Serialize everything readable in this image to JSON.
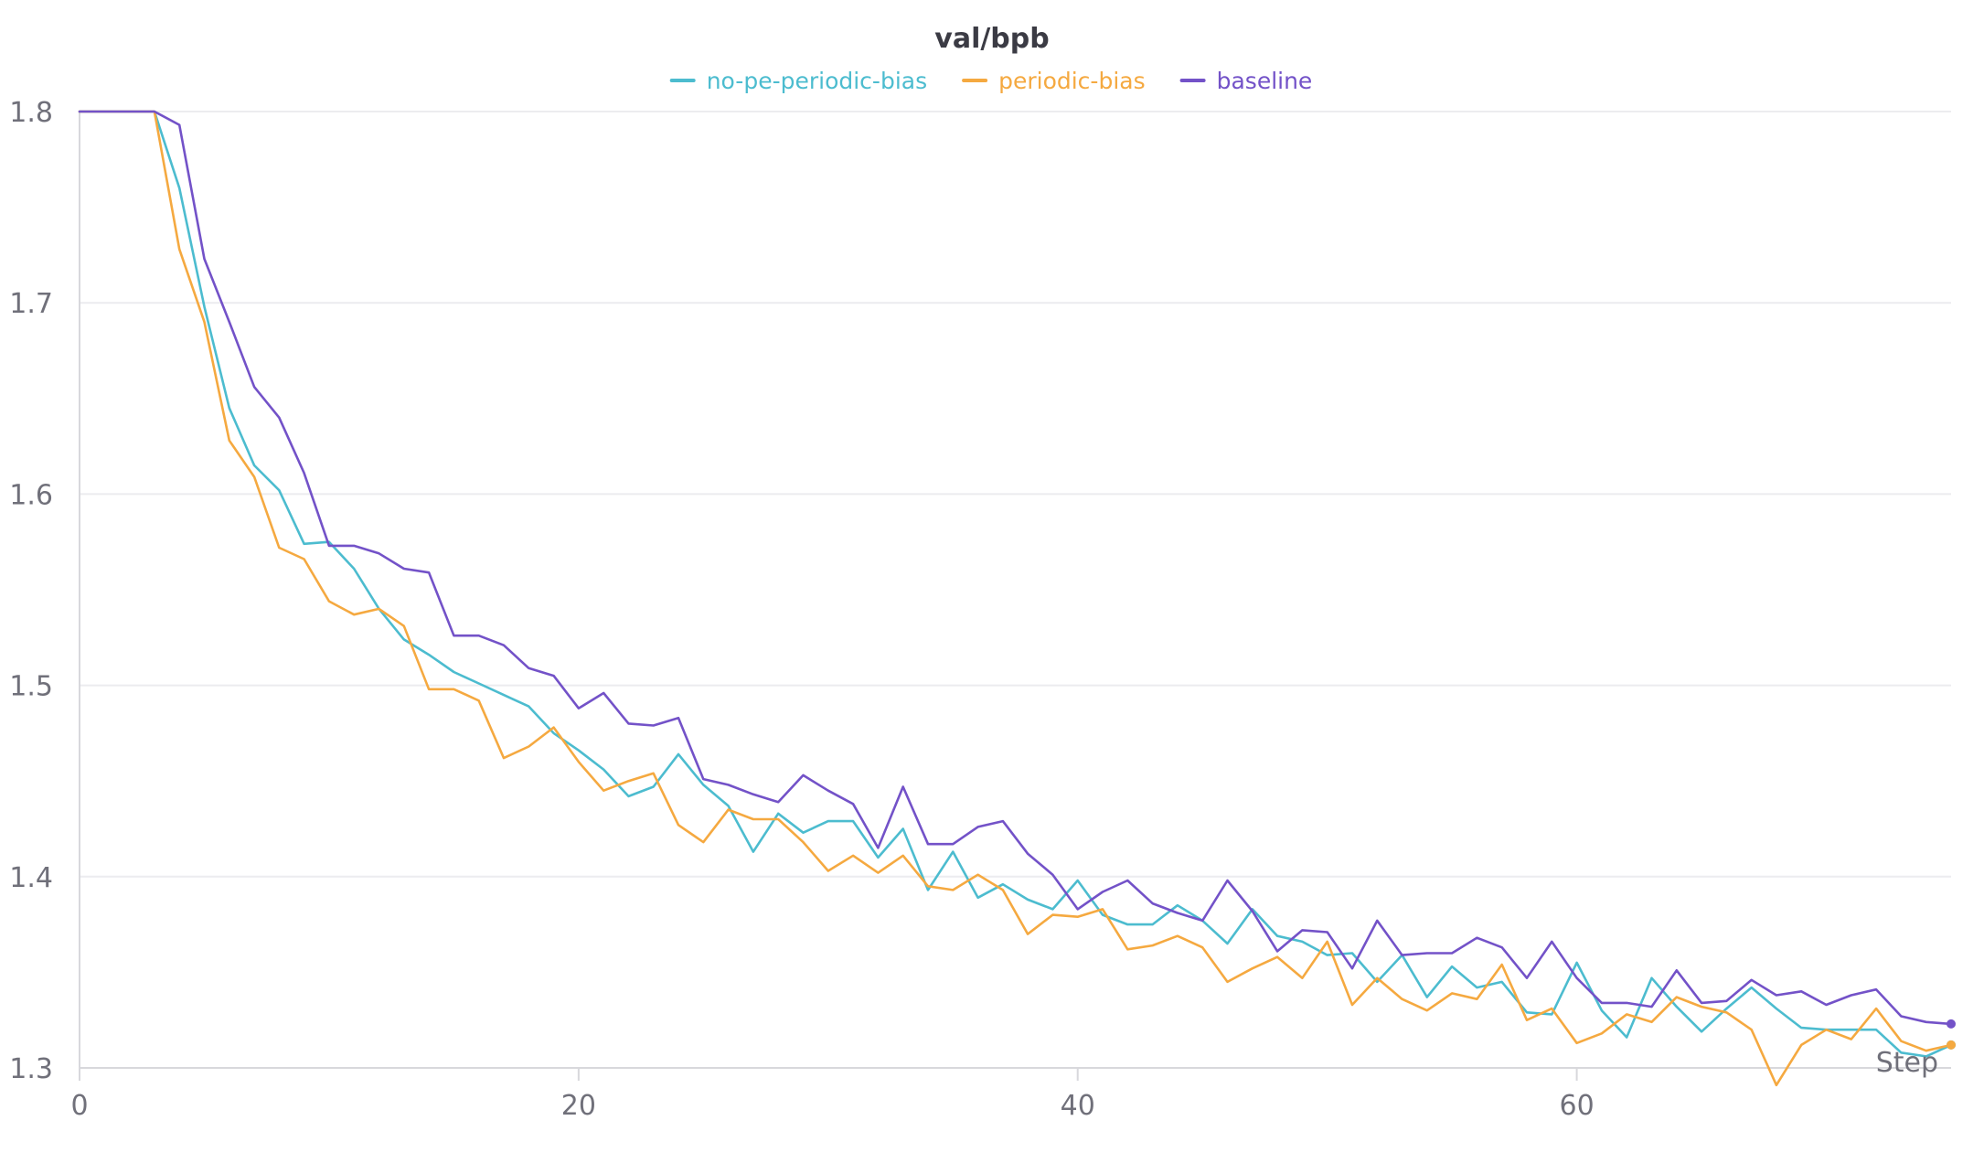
{
  "chart_data": {
    "type": "line",
    "title": "val/bpb",
    "xlabel": "Step",
    "ylabel": "",
    "xlim": [
      0,
      75
    ],
    "ylim": [
      1.3,
      1.8
    ],
    "x_ticks": [
      0,
      20,
      40,
      60
    ],
    "y_ticks": [
      1.3,
      1.4,
      1.5,
      1.6,
      1.7,
      1.8
    ],
    "x_tick_labels": [
      "0",
      "20",
      "40",
      "60"
    ],
    "y_tick_labels": [
      "1.3",
      "1.4",
      "1.5",
      "1.6",
      "1.7",
      "1.8"
    ],
    "grid": true,
    "legend_position": "top-center",
    "x": [
      0,
      1,
      2,
      3,
      4,
      5,
      6,
      7,
      8,
      9,
      10,
      11,
      12,
      13,
      14,
      15,
      16,
      17,
      18,
      19,
      20,
      21,
      22,
      23,
      24,
      25,
      26,
      27,
      28,
      29,
      30,
      31,
      32,
      33,
      34,
      35,
      36,
      37,
      38,
      39,
      40,
      41,
      42,
      43,
      44,
      45,
      46,
      47,
      48,
      49,
      50,
      51,
      52,
      53,
      54,
      55,
      56,
      57,
      58,
      59,
      60,
      61,
      62,
      63,
      64,
      65,
      66,
      67,
      68,
      69,
      70,
      71,
      72,
      73,
      74,
      75
    ],
    "series": [
      {
        "name": "no-pe-periodic-bias",
        "color": "#4cbccf",
        "values": [
          1.8,
          1.8,
          1.8,
          1.8,
          1.76,
          1.698,
          1.645,
          1.615,
          1.602,
          1.574,
          1.575,
          1.561,
          1.54,
          1.524,
          1.516,
          1.507,
          1.501,
          1.495,
          1.489,
          1.475,
          1.466,
          1.456,
          1.442,
          1.447,
          1.464,
          1.448,
          1.437,
          1.413,
          1.433,
          1.423,
          1.429,
          1.429,
          1.41,
          1.425,
          1.393,
          1.413,
          1.389,
          1.396,
          1.388,
          1.383,
          1.398,
          1.38,
          1.375,
          1.375,
          1.385,
          1.377,
          1.365,
          1.383,
          1.369,
          1.366,
          1.359,
          1.36,
          1.345,
          1.359,
          1.337,
          1.353,
          1.342,
          1.345,
          1.329,
          1.328,
          1.355,
          1.33,
          1.316,
          1.347,
          1.332,
          1.319,
          1.331,
          1.342,
          1.331,
          1.321,
          1.32,
          1.32,
          1.32,
          1.308,
          1.306,
          1.312
        ]
      },
      {
        "name": "periodic-bias",
        "color": "#f5a940",
        "values": [
          1.8,
          1.8,
          1.8,
          1.8,
          1.728,
          1.69,
          1.628,
          1.609,
          1.572,
          1.566,
          1.544,
          1.537,
          1.54,
          1.531,
          1.498,
          1.498,
          1.492,
          1.462,
          1.468,
          1.478,
          1.46,
          1.445,
          1.45,
          1.454,
          1.427,
          1.418,
          1.435,
          1.43,
          1.43,
          1.418,
          1.403,
          1.411,
          1.402,
          1.411,
          1.395,
          1.393,
          1.401,
          1.393,
          1.37,
          1.38,
          1.379,
          1.383,
          1.362,
          1.364,
          1.369,
          1.363,
          1.345,
          1.352,
          1.358,
          1.347,
          1.366,
          1.333,
          1.347,
          1.336,
          1.33,
          1.339,
          1.336,
          1.354,
          1.325,
          1.331,
          1.313,
          1.318,
          1.328,
          1.324,
          1.337,
          1.332,
          1.329,
          1.32,
          1.291,
          1.312,
          1.32,
          1.315,
          1.331,
          1.314,
          1.309,
          1.312
        ]
      },
      {
        "name": "baseline",
        "color": "#7352c8",
        "values": [
          1.8,
          1.8,
          1.8,
          1.8,
          1.793,
          1.723,
          1.69,
          1.656,
          1.64,
          1.611,
          1.573,
          1.573,
          1.569,
          1.561,
          1.559,
          1.526,
          1.526,
          1.521,
          1.509,
          1.505,
          1.488,
          1.496,
          1.48,
          1.479,
          1.483,
          1.451,
          1.448,
          1.443,
          1.439,
          1.453,
          1.445,
          1.438,
          1.415,
          1.447,
          1.417,
          1.417,
          1.426,
          1.429,
          1.412,
          1.401,
          1.383,
          1.392,
          1.398,
          1.386,
          1.381,
          1.377,
          1.398,
          1.382,
          1.361,
          1.372,
          1.371,
          1.352,
          1.377,
          1.359,
          1.36,
          1.36,
          1.368,
          1.363,
          1.347,
          1.366,
          1.347,
          1.334,
          1.334,
          1.332,
          1.351,
          1.334,
          1.335,
          1.346,
          1.338,
          1.34,
          1.333,
          1.338,
          1.341,
          1.327,
          1.324,
          1.323
        ]
      }
    ]
  }
}
